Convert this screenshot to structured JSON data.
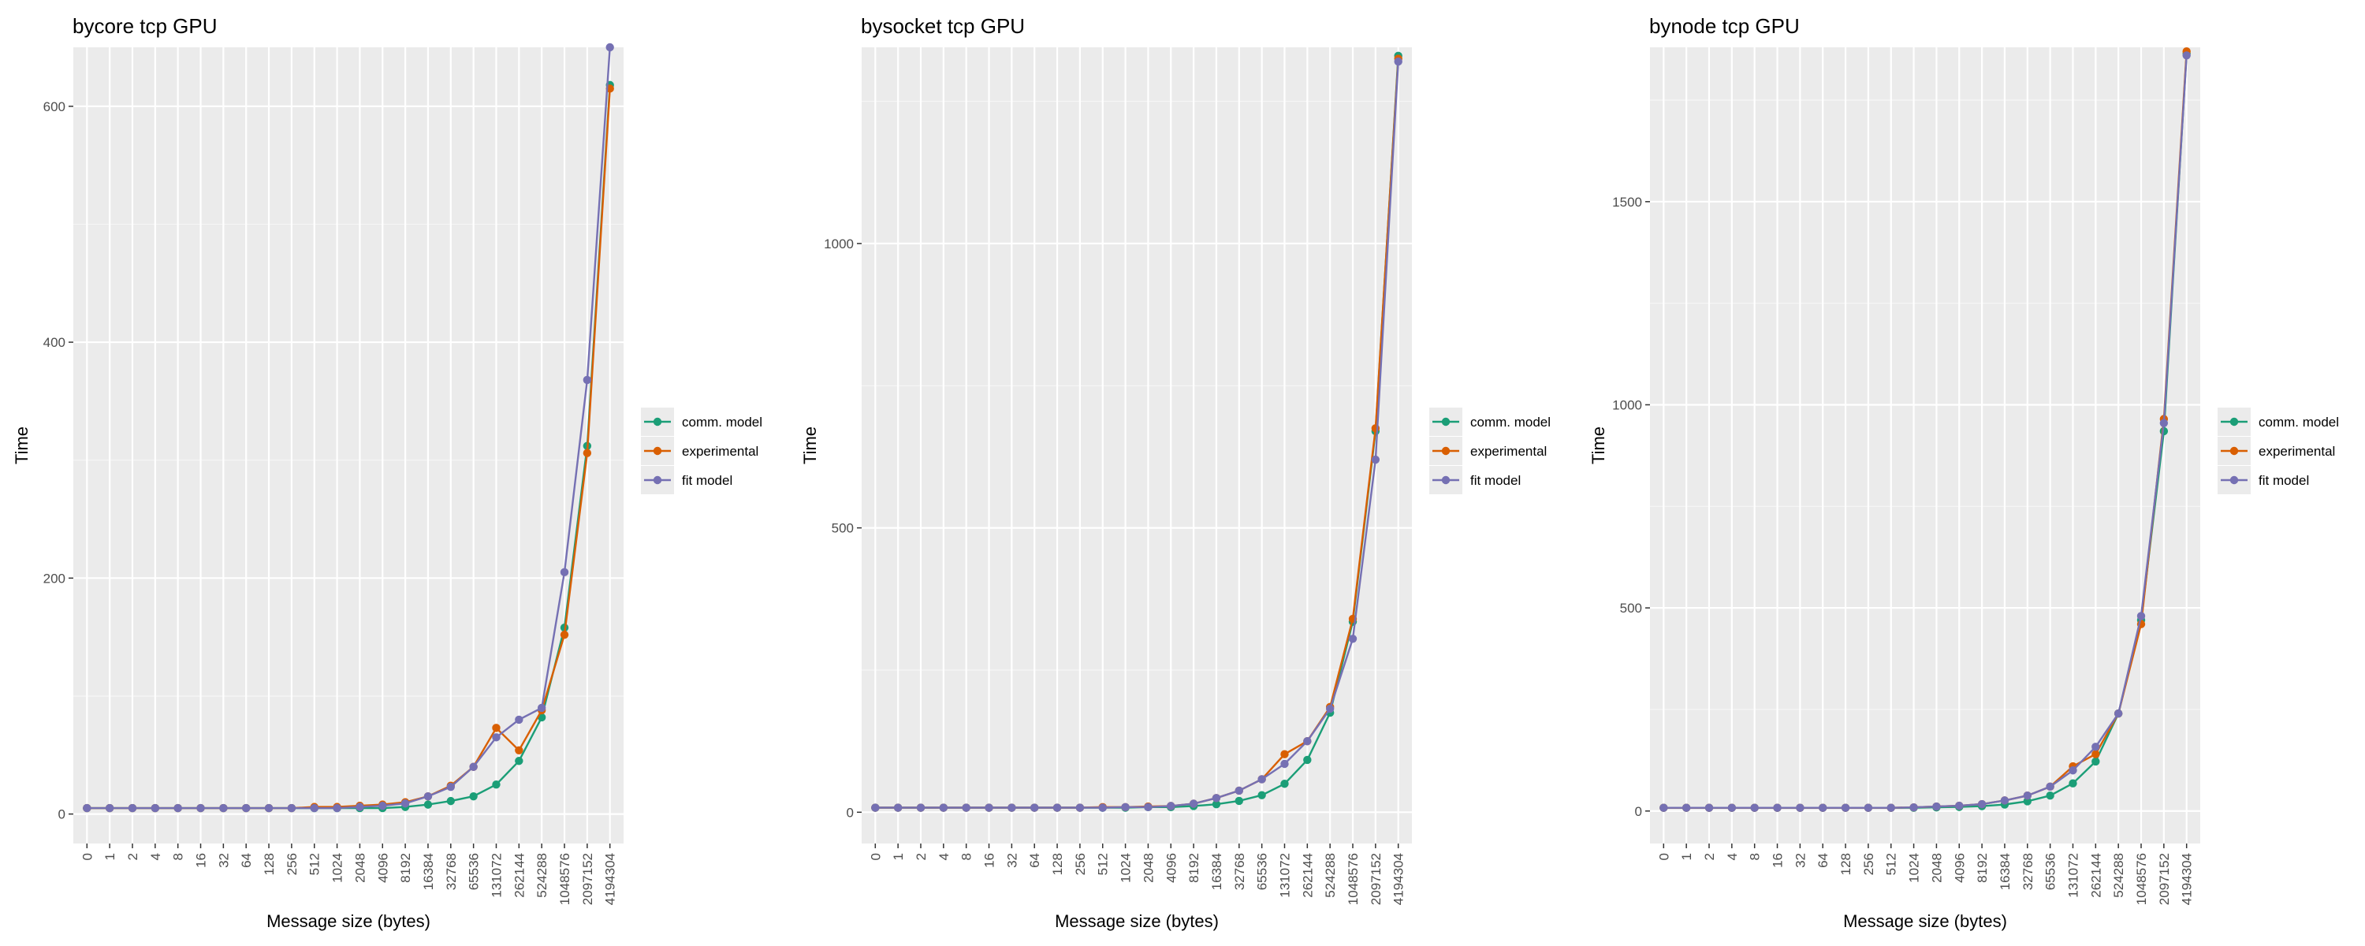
{
  "colors": {
    "comm_model": "#1b9e77",
    "experimental": "#d95f02",
    "fit_model": "#7570b3",
    "panel_bg": "#ebebeb",
    "grid_major": "#ffffff",
    "grid_minor": "#f5f5f5"
  },
  "chart_data": [
    {
      "type": "line",
      "title": "bycore tcp GPU",
      "xlabel": "Message size (bytes)",
      "ylabel": "Time",
      "categories": [
        "0",
        "1",
        "2",
        "4",
        "8",
        "16",
        "32",
        "64",
        "128",
        "256",
        "512",
        "1024",
        "2048",
        "4096",
        "8192",
        "16384",
        "32768",
        "65536",
        "131072",
        "262144",
        "524288",
        "1048576",
        "2097152",
        "4194304"
      ],
      "ylim": [
        -25,
        650
      ],
      "yticks": [
        0,
        200,
        400,
        600
      ],
      "legend_position": "right",
      "series": [
        {
          "name": "comm. model",
          "values": [
            5,
            5,
            5,
            5,
            5,
            5,
            5,
            5,
            5,
            5,
            5,
            5,
            5,
            5,
            6,
            8,
            11,
            15,
            25,
            45,
            82,
            158,
            312,
            618
          ]
        },
        {
          "name": "experimental",
          "values": [
            5,
            5,
            5,
            5,
            5,
            5,
            5,
            5,
            5,
            5,
            6,
            6,
            7,
            8,
            10,
            15,
            24,
            40,
            73,
            54,
            88,
            152,
            306,
            615
          ]
        },
        {
          "name": "fit model",
          "values": [
            5,
            5,
            5,
            5,
            5,
            5,
            5,
            5,
            5,
            5,
            5,
            5,
            6,
            7,
            9,
            15,
            23,
            40,
            65,
            80,
            90,
            205,
            368,
            650
          ]
        }
      ]
    },
    {
      "type": "line",
      "title": "bysocket tcp GPU",
      "xlabel": "Message size (bytes)",
      "ylabel": "Time",
      "categories": [
        "0",
        "1",
        "2",
        "4",
        "8",
        "16",
        "32",
        "64",
        "128",
        "256",
        "512",
        "1024",
        "2048",
        "4096",
        "8192",
        "16384",
        "32768",
        "65536",
        "131072",
        "262144",
        "524288",
        "1048576",
        "2097152",
        "4194304"
      ],
      "ylim": [
        -55,
        1345
      ],
      "yticks": [
        0,
        500,
        1000
      ],
      "legend_position": "right",
      "series": [
        {
          "name": "comm. model",
          "values": [
            8,
            8,
            8,
            8,
            8,
            8,
            8,
            8,
            8,
            8,
            8,
            8,
            9,
            9,
            11,
            14,
            20,
            30,
            50,
            92,
            175,
            335,
            670,
            1330
          ]
        },
        {
          "name": "experimental",
          "values": [
            8,
            8,
            8,
            8,
            8,
            8,
            8,
            8,
            8,
            8,
            9,
            9,
            10,
            11,
            15,
            25,
            38,
            58,
            102,
            125,
            185,
            340,
            675,
            1325
          ]
        },
        {
          "name": "fit model",
          "values": [
            8,
            8,
            8,
            8,
            8,
            8,
            8,
            8,
            8,
            8,
            8,
            9,
            9,
            11,
            15,
            25,
            38,
            58,
            85,
            125,
            182,
            305,
            620,
            1320
          ]
        }
      ]
    },
    {
      "type": "line",
      "title": "bynode tcp GPU",
      "xlabel": "Message size (bytes)",
      "ylabel": "Time",
      "categories": [
        "0",
        "1",
        "2",
        "4",
        "8",
        "16",
        "32",
        "64",
        "128",
        "256",
        "512",
        "1024",
        "2048",
        "4096",
        "8192",
        "16384",
        "32768",
        "65536",
        "131072",
        "262144",
        "524288",
        "1048576",
        "2097152",
        "4194304"
      ],
      "ylim": [
        -80,
        1880
      ],
      "yticks": [
        0,
        500,
        1000,
        1500
      ],
      "legend_position": "right",
      "series": [
        {
          "name": "comm. model",
          "values": [
            8,
            8,
            8,
            8,
            8,
            8,
            8,
            8,
            8,
            8,
            8,
            8,
            9,
            10,
            12,
            16,
            24,
            38,
            68,
            122,
            240,
            470,
            935,
            1865
          ]
        },
        {
          "name": "experimental",
          "values": [
            8,
            8,
            8,
            8,
            8,
            8,
            8,
            8,
            8,
            8,
            8,
            9,
            11,
            13,
            17,
            26,
            38,
            60,
            110,
            140,
            240,
            460,
            965,
            1870
          ]
        },
        {
          "name": "fit model",
          "values": [
            8,
            8,
            8,
            8,
            8,
            8,
            8,
            8,
            8,
            8,
            8,
            9,
            11,
            13,
            17,
            26,
            38,
            60,
            100,
            158,
            240,
            480,
            955,
            1860
          ]
        }
      ]
    }
  ]
}
